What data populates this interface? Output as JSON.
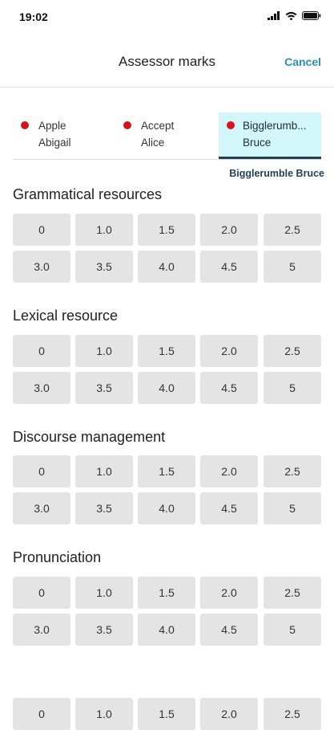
{
  "status_bar": {
    "time": "19:02",
    "icons": [
      "signal-icon",
      "wifi-icon",
      "battery-icon"
    ]
  },
  "header": {
    "title": "Assessor marks",
    "cancel_label": "Cancel"
  },
  "candidates": [
    {
      "line1": "Apple",
      "line2": "Abigail",
      "active": false
    },
    {
      "line1": "Accept",
      "line2": "Alice",
      "active": false
    },
    {
      "line1": "Bigglerumb...",
      "line2": "Bruce",
      "active": true
    }
  ],
  "selected_candidate": "Bigglerumble Bruce",
  "colors": {
    "accent": "#2a8fb3",
    "active_tab_bg": "#d3f6fb",
    "active_tab_underline": "#1f3f5a",
    "status_dot": "#d7141c",
    "score_button_bg": "#e4e4e4"
  },
  "sections": [
    {
      "title": "Grammatical resources",
      "scores": [
        "0",
        "1.0",
        "1.5",
        "2.0",
        "2.5",
        "3.0",
        "3.5",
        "4.0",
        "4.5",
        "5"
      ]
    },
    {
      "title": "Lexical resource",
      "scores": [
        "0",
        "1.0",
        "1.5",
        "2.0",
        "2.5",
        "3.0",
        "3.5",
        "4.0",
        "4.5",
        "5"
      ]
    },
    {
      "title": "Discourse management",
      "scores": [
        "0",
        "1.0",
        "1.5",
        "2.0",
        "2.5",
        "3.0",
        "3.5",
        "4.0",
        "4.5",
        "5"
      ]
    },
    {
      "title": "Pronunciation",
      "scores": [
        "0",
        "1.0",
        "1.5",
        "2.0",
        "2.5",
        "3.0",
        "3.5",
        "4.0",
        "4.5",
        "5"
      ]
    },
    {
      "title": "",
      "scores": [
        "0",
        "1.0",
        "1.5",
        "2.0",
        "2.5"
      ]
    }
  ]
}
